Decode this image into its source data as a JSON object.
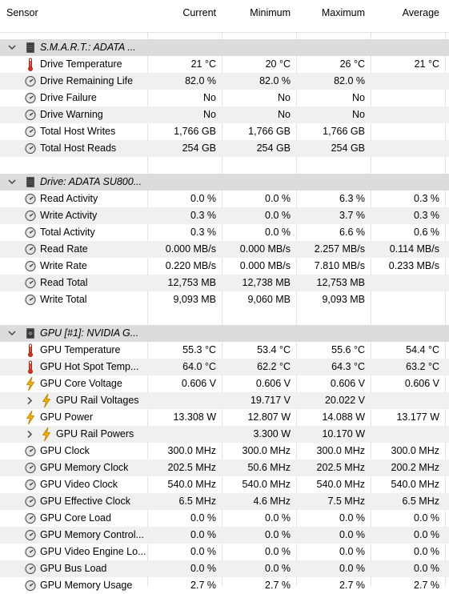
{
  "columns": {
    "sensor": "Sensor",
    "current": "Current",
    "minimum": "Minimum",
    "maximum": "Maximum",
    "average": "Average"
  },
  "rows": [
    {
      "kind": "group",
      "label": "S.M.A.R.T.: ADATA ...",
      "icon": "drive-icon"
    },
    {
      "kind": "item",
      "label": "Drive Temperature",
      "icon": "thermometer-icon",
      "current": "21 °C",
      "minimum": "20 °C",
      "maximum": "26 °C",
      "average": "21 °C"
    },
    {
      "kind": "item",
      "label": "Drive Remaining Life",
      "icon": "gauge-icon",
      "current": "82.0 %",
      "minimum": "82.0 %",
      "maximum": "82.0 %",
      "average": ""
    },
    {
      "kind": "item",
      "label": "Drive Failure",
      "icon": "gauge-icon",
      "current": "No",
      "minimum": "No",
      "maximum": "No",
      "average": ""
    },
    {
      "kind": "item",
      "label": "Drive Warning",
      "icon": "gauge-icon",
      "current": "No",
      "minimum": "No",
      "maximum": "No",
      "average": ""
    },
    {
      "kind": "item",
      "label": "Total Host Writes",
      "icon": "gauge-icon",
      "current": "1,766 GB",
      "minimum": "1,766 GB",
      "maximum": "1,766 GB",
      "average": ""
    },
    {
      "kind": "item",
      "label": "Total Host Reads",
      "icon": "gauge-icon",
      "current": "254 GB",
      "minimum": "254 GB",
      "maximum": "254 GB",
      "average": ""
    },
    {
      "kind": "spacer"
    },
    {
      "kind": "group",
      "label": "Drive: ADATA SU800...",
      "icon": "drive-icon"
    },
    {
      "kind": "item",
      "label": "Read Activity",
      "icon": "gauge-icon",
      "current": "0.0 %",
      "minimum": "0.0 %",
      "maximum": "6.3 %",
      "average": "0.3 %"
    },
    {
      "kind": "item",
      "label": "Write Activity",
      "icon": "gauge-icon",
      "current": "0.3 %",
      "minimum": "0.0 %",
      "maximum": "3.7 %",
      "average": "0.3 %"
    },
    {
      "kind": "item",
      "label": "Total Activity",
      "icon": "gauge-icon",
      "current": "0.3 %",
      "minimum": "0.0 %",
      "maximum": "6.6 %",
      "average": "0.6 %"
    },
    {
      "kind": "item",
      "label": "Read Rate",
      "icon": "gauge-icon",
      "current": "0.000 MB/s",
      "minimum": "0.000 MB/s",
      "maximum": "2.257 MB/s",
      "average": "0.114 MB/s"
    },
    {
      "kind": "item",
      "label": "Write Rate",
      "icon": "gauge-icon",
      "current": "0.220 MB/s",
      "minimum": "0.000 MB/s",
      "maximum": "7.810 MB/s",
      "average": "0.233 MB/s"
    },
    {
      "kind": "item",
      "label": "Read Total",
      "icon": "gauge-icon",
      "current": "12,753 MB",
      "minimum": "12,738 MB",
      "maximum": "12,753 MB",
      "average": ""
    },
    {
      "kind": "item",
      "label": "Write Total",
      "icon": "gauge-icon",
      "current": "9,093 MB",
      "minimum": "9,060 MB",
      "maximum": "9,093 MB",
      "average": ""
    },
    {
      "kind": "spacer"
    },
    {
      "kind": "group",
      "label": "GPU [#1]: NVIDIA G...",
      "icon": "gpu-icon"
    },
    {
      "kind": "item",
      "label": "GPU Temperature",
      "icon": "thermometer-icon",
      "current": "55.3 °C",
      "minimum": "53.4 °C",
      "maximum": "55.6 °C",
      "average": "54.4 °C"
    },
    {
      "kind": "item",
      "label": "GPU Hot Spot Temp...",
      "icon": "thermometer-icon",
      "current": "64.0 °C",
      "minimum": "62.2 °C",
      "maximum": "64.3 °C",
      "average": "63.2 °C"
    },
    {
      "kind": "item",
      "label": "GPU Core Voltage",
      "icon": "lightning-icon",
      "current": "0.606 V",
      "minimum": "0.606 V",
      "maximum": "0.606 V",
      "average": "0.606 V"
    },
    {
      "kind": "subitem",
      "label": "GPU Rail Voltages",
      "icon": "lightning-icon",
      "current": "",
      "minimum": "19.717 V",
      "maximum": "20.022 V",
      "average": ""
    },
    {
      "kind": "item",
      "label": "GPU Power",
      "icon": "lightning-icon",
      "current": "13.308 W",
      "minimum": "12.807 W",
      "maximum": "14.088 W",
      "average": "13.177 W"
    },
    {
      "kind": "subitem",
      "label": "GPU Rail Powers",
      "icon": "lightning-icon",
      "current": "",
      "minimum": "3.300 W",
      "maximum": "10.170 W",
      "average": ""
    },
    {
      "kind": "item",
      "label": "GPU Clock",
      "icon": "gauge-icon",
      "current": "300.0 MHz",
      "minimum": "300.0 MHz",
      "maximum": "300.0 MHz",
      "average": "300.0 MHz"
    },
    {
      "kind": "item",
      "label": "GPU Memory Clock",
      "icon": "gauge-icon",
      "current": "202.5 MHz",
      "minimum": "50.6 MHz",
      "maximum": "202.5 MHz",
      "average": "200.2 MHz"
    },
    {
      "kind": "item",
      "label": "GPU Video Clock",
      "icon": "gauge-icon",
      "current": "540.0 MHz",
      "minimum": "540.0 MHz",
      "maximum": "540.0 MHz",
      "average": "540.0 MHz"
    },
    {
      "kind": "item",
      "label": "GPU Effective Clock",
      "icon": "gauge-icon",
      "current": "6.5 MHz",
      "minimum": "4.6 MHz",
      "maximum": "7.5 MHz",
      "average": "6.5 MHz"
    },
    {
      "kind": "item",
      "label": "GPU Core Load",
      "icon": "gauge-icon",
      "current": "0.0 %",
      "minimum": "0.0 %",
      "maximum": "0.0 %",
      "average": "0.0 %"
    },
    {
      "kind": "item",
      "label": "GPU Memory Control...",
      "icon": "gauge-icon",
      "current": "0.0 %",
      "minimum": "0.0 %",
      "maximum": "0.0 %",
      "average": "0.0 %"
    },
    {
      "kind": "item",
      "label": "GPU Video Engine Lo...",
      "icon": "gauge-icon",
      "current": "0.0 %",
      "minimum": "0.0 %",
      "maximum": "0.0 %",
      "average": "0.0 %"
    },
    {
      "kind": "item",
      "label": "GPU Bus Load",
      "icon": "gauge-icon",
      "current": "0.0 %",
      "minimum": "0.0 %",
      "maximum": "0.0 %",
      "average": "0.0 %"
    },
    {
      "kind": "item",
      "label": "GPU Memory Usage",
      "icon": "gauge-icon",
      "current": "2.7 %",
      "minimum": "2.7 %",
      "maximum": "2.7 %",
      "average": "2.7 %"
    }
  ]
}
